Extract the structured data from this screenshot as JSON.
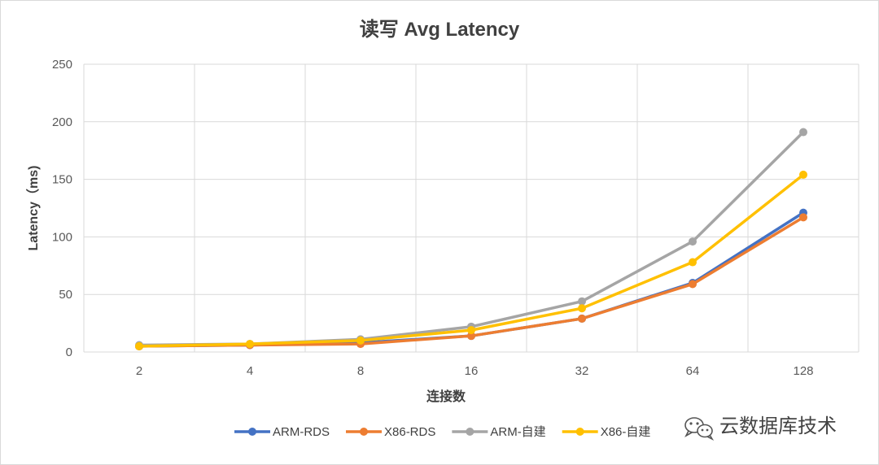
{
  "chart_data": {
    "type": "line",
    "title": "读写  Avg Latency",
    "xlabel": "连接数",
    "ylabel": "Latency（ms)",
    "categories": [
      "2",
      "4",
      "8",
      "16",
      "32",
      "64",
      "128"
    ],
    "ylim": [
      0,
      250
    ],
    "yticks": [
      "0",
      "50",
      "100",
      "150",
      "200",
      "250"
    ],
    "grid": true,
    "legend_position": "bottom",
    "series": [
      {
        "name": "ARM-RDS",
        "color": "#4472C4",
        "values": [
          5,
          6,
          8,
          14,
          29,
          60,
          121
        ]
      },
      {
        "name": "X86-RDS",
        "color": "#ED7D31",
        "values": [
          5,
          6,
          7,
          14,
          29,
          59,
          117
        ]
      },
      {
        "name": "ARM-自建",
        "color": "#A5A5A5",
        "values": [
          6,
          7,
          11,
          22,
          44,
          96,
          191
        ]
      },
      {
        "name": "X86-自建",
        "color": "#FFC000",
        "values": [
          5,
          7,
          10,
          19,
          38,
          78,
          154
        ]
      }
    ]
  },
  "watermark": {
    "text": "云数据库技术",
    "icon": "wechat-icon"
  }
}
